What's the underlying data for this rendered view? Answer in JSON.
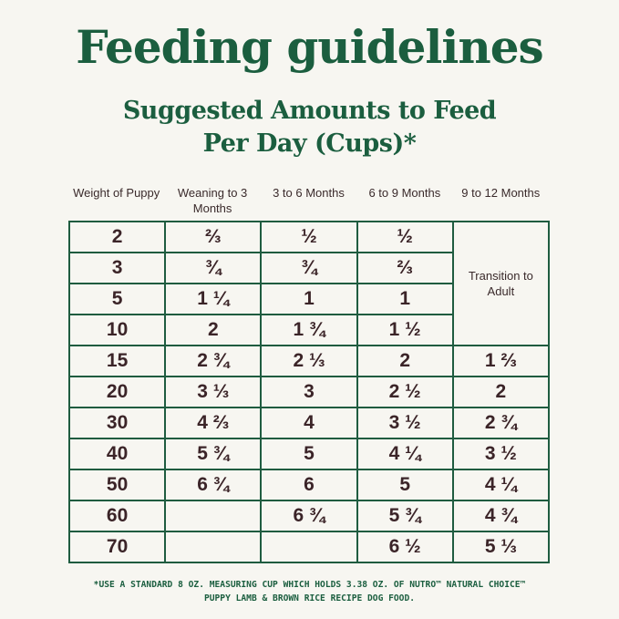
{
  "title": "Feeding guidelines",
  "subtitle_line1": "Suggested Amounts to Feed",
  "subtitle_line2": "Per Day (Cups)*",
  "columns": [
    "Weight of Puppy",
    "Weaning to 3 Months",
    "3 to 6 Months",
    "6 to 9 Months",
    "9 to 12 Months"
  ],
  "transition_label": "Transition to Adult",
  "rows": [
    [
      "2",
      "⅔",
      "½",
      "½"
    ],
    [
      "3",
      "¾",
      "¾",
      "⅔"
    ],
    [
      "5",
      "1 ¼",
      "1",
      "1"
    ],
    [
      "10",
      "2",
      "1 ¾",
      "1 ½"
    ],
    [
      "15",
      "2 ¾",
      "2 ⅓",
      "2",
      "1 ⅔"
    ],
    [
      "20",
      "3 ⅓",
      "3",
      "2 ½",
      "2"
    ],
    [
      "30",
      "4 ⅔",
      "4",
      "3 ½",
      "2 ¾"
    ],
    [
      "40",
      "5 ¾",
      "5",
      "4 ¼",
      "3 ½"
    ],
    [
      "50",
      "6 ¾",
      "6",
      "5",
      "4 ¼"
    ],
    [
      "60",
      "",
      "6 ¾",
      "5 ¾",
      "4 ¾"
    ],
    [
      "70",
      "",
      "",
      "6 ½",
      "5 ⅓"
    ]
  ],
  "footnote_line1": "*USE A STANDARD 8 OZ. MEASURING CUP WHICH HOLDS 3.38 OZ. OF NUTRO™ NATURAL CHOICE™",
  "footnote_line2": "PUPPY LAMB & BROWN RICE RECIPE DOG FOOD.",
  "colors": {
    "green": "#1b5e3f",
    "text": "#3b2428",
    "background": "#f7f6f1"
  }
}
